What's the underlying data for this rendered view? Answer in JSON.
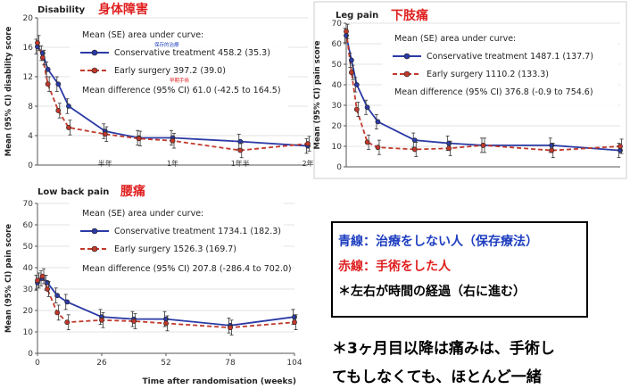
{
  "colors": {
    "conservative": "#2b3aa6",
    "surgery": "#c0392b",
    "red_text": "#e02020",
    "blue_text": "#1f3fc0"
  },
  "chart_data": [
    {
      "type": "line",
      "title": "Disability",
      "title_ja": "身体障害",
      "ylabel": "Mean (95% CI) disability score",
      "ylim": [
        0,
        20
      ],
      "yticks": [
        "0",
        "4",
        "8",
        "12",
        "16",
        "20"
      ],
      "xlim": [
        0,
        104
      ],
      "xtick_labels": [
        {
          "x": 26,
          "label": "半年"
        },
        {
          "x": 52,
          "label": "1年"
        },
        {
          "x": 78,
          "label": "1年半"
        },
        {
          "x": 104,
          "label": "2年"
        }
      ],
      "annotation_header": "Mean (SE) area under curve:",
      "annotation_diff": "Mean difference (95% CI) 61.0 (-42.5 to 164.5)",
      "small_notes": {
        "conservative": "保存的治療",
        "surgery": "早期手術"
      },
      "series": [
        {
          "name": "Conservative treatment",
          "value_text": "458.2 (35.3)",
          "color": "#2b3aa6",
          "x": [
            0,
            2,
            4,
            8,
            12,
            26,
            39,
            52,
            78,
            104
          ],
          "y": [
            16.1,
            15.2,
            13.0,
            11.0,
            8.0,
            4.6,
            3.7,
            3.7,
            3.2,
            2.6
          ]
        },
        {
          "name": "Early surgery",
          "value_text": "397.2 (39.0)",
          "color": "#c0392b",
          "x": [
            0,
            2,
            4,
            8,
            12,
            26,
            39,
            52,
            78,
            104
          ],
          "y": [
            16.6,
            14.6,
            11.0,
            7.4,
            5.1,
            4.2,
            3.6,
            3.3,
            2.0,
            2.9
          ]
        }
      ]
    },
    {
      "type": "line",
      "title": "Leg pain",
      "title_ja": "下肢痛",
      "ylabel": "Mean (95% CI) pain score",
      "ylim": [
        0,
        70
      ],
      "yticks": [
        "0",
        "10",
        "20",
        "30",
        "40",
        "50",
        "60",
        "70"
      ],
      "xlim": [
        0,
        104
      ],
      "annotation_header": "Mean (SE) area under curve:",
      "annotation_diff": "Mean difference (95% CI) 376.8 (-0.9 to 754.6)",
      "series": [
        {
          "name": "Conservative treatment",
          "value_text": "1487.1 (137.7)",
          "color": "#2b3aa6",
          "x": [
            0,
            2,
            4,
            8,
            12,
            26,
            39,
            52,
            78,
            104
          ],
          "y": [
            64,
            52,
            40,
            29,
            22,
            13,
            11.5,
            10.5,
            10.5,
            8
          ]
        },
        {
          "name": "Early surgery",
          "value_text": "1110.2 (133.3)",
          "color": "#c0392b",
          "x": [
            0,
            2,
            4,
            8,
            12,
            26,
            39,
            52,
            78,
            104
          ],
          "y": [
            66,
            46,
            28,
            12,
            9.5,
            8.5,
            9,
            10.5,
            8,
            10
          ]
        }
      ]
    },
    {
      "type": "line",
      "title": "Low back pain",
      "title_ja": "腰痛",
      "ylabel": "Mean (95% CI) pain score",
      "xlabel": "Time after randomisation (weeks)",
      "ylim": [
        0,
        70
      ],
      "yticks": [
        "0",
        "10",
        "20",
        "30",
        "40",
        "50",
        "60",
        "70"
      ],
      "xlim": [
        0,
        104
      ],
      "xticks": [
        "0",
        "26",
        "52",
        "78",
        "104"
      ],
      "annotation_header": "Mean (SE) area under curve:",
      "annotation_diff": "Mean difference (95% CI) 207.8 (-286.4 to 702.0)",
      "series": [
        {
          "name": "Conservative treatment",
          "value_text": "1734.1 (182.3)",
          "color": "#2b3aa6",
          "x": [
            0,
            2,
            4,
            8,
            12,
            26,
            39,
            52,
            78,
            104
          ],
          "y": [
            33,
            35,
            33,
            27,
            24,
            17,
            16,
            16,
            13,
            17
          ]
        },
        {
          "name": "Early surgery",
          "value_text": "1526.3 (169.7)",
          "color": "#c0392b",
          "x": [
            0,
            2,
            4,
            8,
            12,
            26,
            39,
            52,
            78,
            104
          ],
          "y": [
            34,
            36,
            30,
            19,
            14.5,
            15.5,
            15,
            14,
            12,
            14.5
          ]
        }
      ]
    }
  ],
  "legend": {
    "blue_line": "青線：治療をしない人（保存療法）",
    "red_line": "赤線：手術をした人",
    "time_note": "＊左右が時間の経過（右に進む）"
  },
  "conclusion": {
    "line1": "＊3ヶ月目以降は痛みは、手術し",
    "line2": "てもしなくても、ほとんど一緒"
  }
}
